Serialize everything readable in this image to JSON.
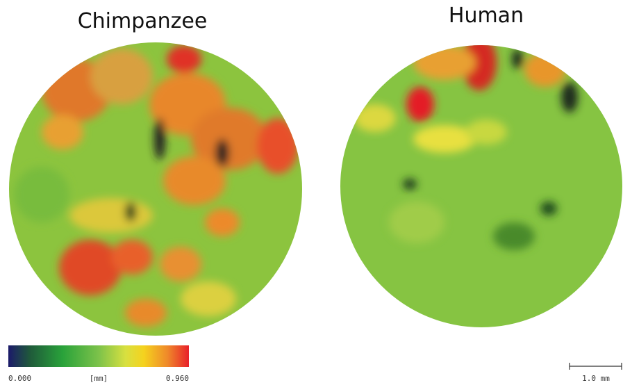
{
  "panels": [
    {
      "title": "Chimpanzee"
    },
    {
      "title": "Human"
    }
  ],
  "colorbar": {
    "min_label": "0.000",
    "unit": "[mm]",
    "max_label": "0.960"
  },
  "scale_bar": {
    "label": "1.0 mm"
  }
}
